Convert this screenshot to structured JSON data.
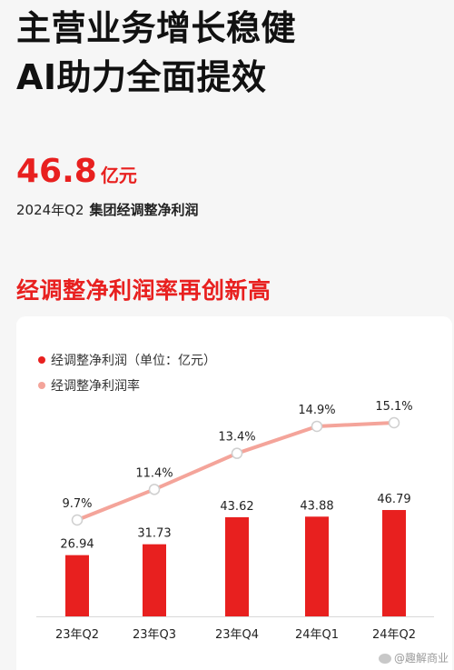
{
  "headline": {
    "line1": "主营业务增长稳健",
    "line2": "AI助力全面提效"
  },
  "highlight": {
    "value": "46.8",
    "unit": "亿元",
    "period": "2024年Q2",
    "metric": "集团经调整净利润"
  },
  "section_title": "经调整净利润率再创新高",
  "legend": {
    "bar_label": "经调整净利润（单位：亿元）",
    "line_label": "经调整净利润率"
  },
  "watermark": "@趣解商业",
  "colors": {
    "accent": "#e8201f",
    "line": "#f4a49a",
    "background": "#f6f6f6",
    "card": "#ffffff"
  },
  "chart_data": {
    "type": "bar",
    "categories": [
      "23年Q2",
      "23年Q3",
      "23年Q4",
      "24年Q1",
      "24年Q2"
    ],
    "series": [
      {
        "name": "经调整净利润（单位：亿元）",
        "type": "bar",
        "values": [
          26.94,
          31.73,
          43.62,
          43.88,
          46.79
        ],
        "labels": [
          "26.94",
          "31.73",
          "43.62",
          "43.88",
          "46.79"
        ]
      },
      {
        "name": "经调整净利润率",
        "type": "line",
        "values": [
          9.7,
          11.4,
          13.4,
          14.9,
          15.1
        ],
        "labels": [
          "9.7%",
          "11.4%",
          "13.4%",
          "14.9%",
          "15.1%"
        ]
      }
    ],
    "grid": false,
    "legend_position": "top-left"
  }
}
